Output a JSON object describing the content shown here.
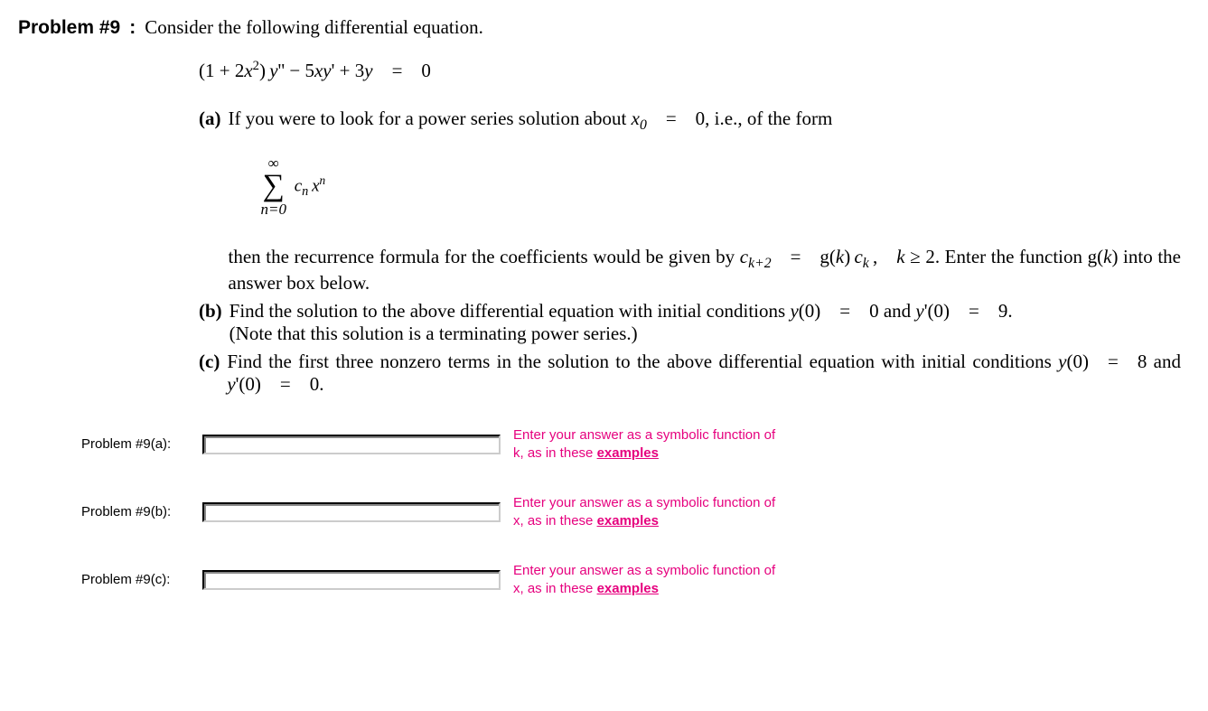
{
  "heading": {
    "label": "Problem #9",
    "colon": ":",
    "intro": "Consider the following differential equation."
  },
  "equation_main_html": "(1 + 2<span class='ital'>x</span><sup>2</sup>) <span class='ital'>y</span>'' − 5<span class='ital'>xy</span>' + 3<span class='ital'>y</span> = 0",
  "parts": {
    "a": {
      "label": "(a)",
      "line1_html": "If you were to look for a power series solution about <span class='ital'>x</span><sub>0</sub> = 0, i.e., of the form",
      "sum": {
        "top": "∞",
        "sigma": "∑",
        "bottom": "n=0",
        "term_html": "c<sub>n</sub> x<sup><span class='ital'>n</span></sup>"
      },
      "line2_html": "then the recurrence formula for the coefficients would be given by <span class='ital'>c</span><sub>k+2</sub> = g(<span class='ital'>k</span>) <span class='ital'>c</span><sub>k</sub> , <span class='ital'>k</span> ≥ 2. Enter the function g(<span class='ital'>k</span>) into the answer box below."
    },
    "b": {
      "label": "(b)",
      "html": "Find the solution to the above differential equation with initial conditions <span class='ital'>y</span>(0) = 0 and <span class='ital'>y</span>'(0) = 9.<br>(Note that this solution is a terminating power series.)"
    },
    "c": {
      "label": "(c)",
      "html": "Find the first three nonzero terms in the solution to the above differential equation with initial conditions <span class='ital'>y</span>(0) = 8 and <span class='ital'>y</span>'(0) = 0."
    }
  },
  "answers": [
    {
      "label": "Problem #9(a):",
      "hint_prefix": "Enter your answer as a symbolic function of k, as in these ",
      "link": "examples"
    },
    {
      "label": "Problem #9(b):",
      "hint_prefix": "Enter your answer as a symbolic function of x, as in these ",
      "link": "examples"
    },
    {
      "label": "Problem #9(c):",
      "hint_prefix": "Enter your answer as a symbolic function of x, as in these ",
      "link": "examples"
    }
  ],
  "colors": {
    "hint": "#e6007e",
    "text": "#000000",
    "background": "#ffffff"
  },
  "fonts": {
    "body": "Times New Roman",
    "ui": "Verdana"
  }
}
